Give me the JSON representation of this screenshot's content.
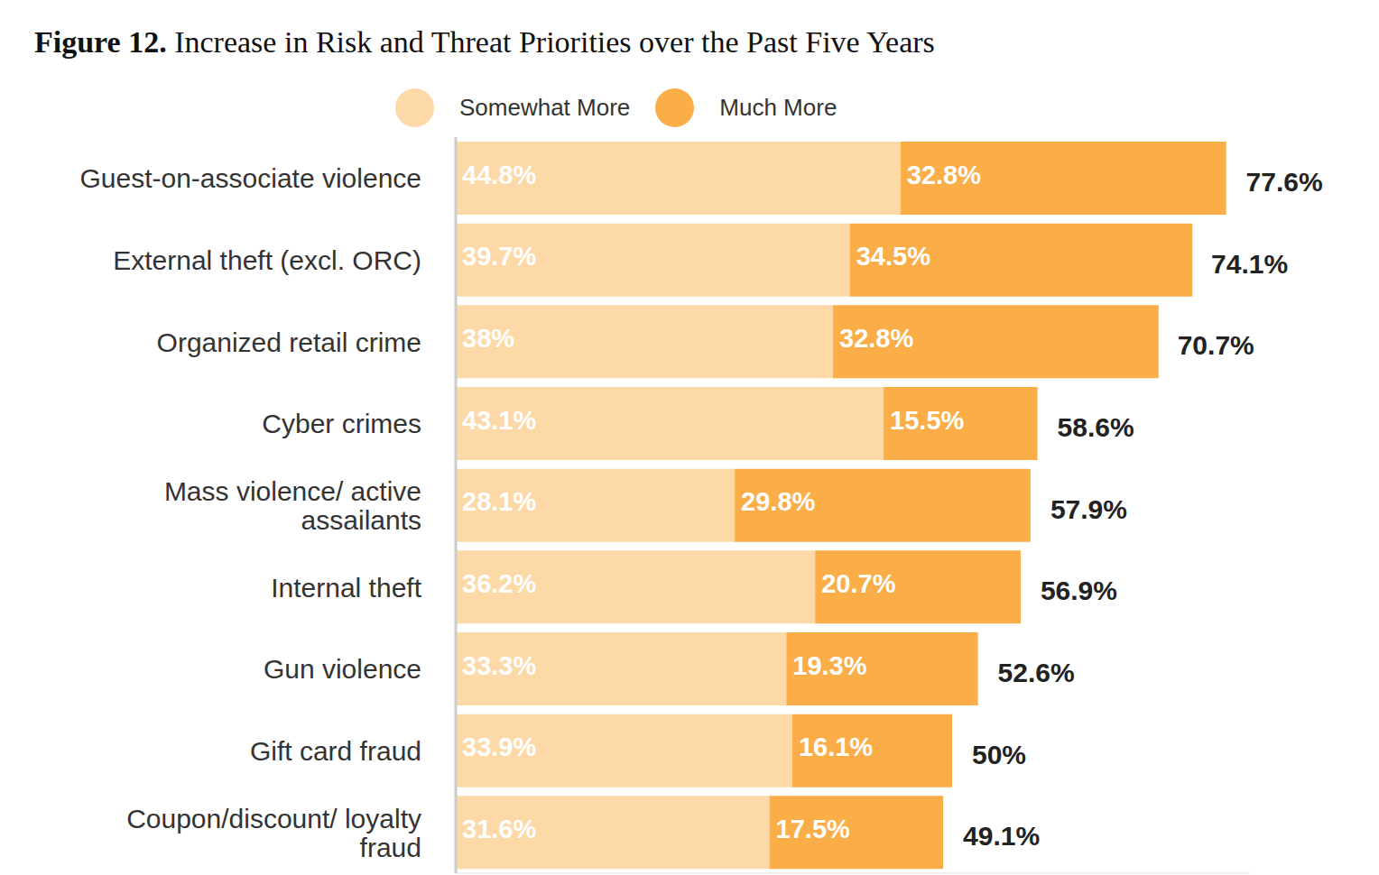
{
  "chart_data": {
    "type": "bar",
    "title": "Figure 12. Increase in Risk and Threat Priorities over the Past Five Years",
    "orientation": "horizontal",
    "stacked": true,
    "data_labels": true,
    "tick_labels": "y",
    "legend": "top",
    "categories": [
      "Guest-on-associate violence",
      "External theft (excl. ORC)",
      "Organized retail crime",
      "Cyber crimes",
      "Mass violence/ active assailants",
      "Internal theft",
      "Gun violence",
      "Gift card fraud",
      "Coupon/discount/ loyalty fraud"
    ],
    "series": [
      {
        "name": "Somewhat More",
        "color": "#fdd9a8",
        "values": [
          44.8,
          39.7,
          38,
          43.1,
          28.1,
          36.2,
          33.3,
          33.9,
          31.6
        ],
        "value_labels": [
          "44.8%",
          "39.7%",
          "38%",
          "43.1%",
          "28.1%",
          "36.2%",
          "33.3%",
          "33.9%",
          "31.6%"
        ]
      },
      {
        "name": "Much More",
        "color": "#fbad47",
        "values": [
          32.8,
          34.5,
          32.8,
          15.5,
          29.8,
          20.7,
          19.3,
          16.1,
          17.5
        ],
        "value_labels": [
          "32.8%",
          "34.5%",
          "32.8%",
          "15.5%",
          "29.8%",
          "20.7%",
          "19.3%",
          "16.1%",
          "17.5%"
        ]
      }
    ],
    "totals": [
      77.6,
      74.1,
      70.7,
      58.6,
      57.9,
      56.9,
      52.6,
      50,
      49.1
    ],
    "total_labels": [
      "77.6%",
      "74.1%",
      "70.7%",
      "58.6%",
      "57.9%",
      "56.9%",
      "52.6%",
      "50%",
      "49.1%"
    ],
    "xlim": [
      0,
      80
    ]
  }
}
